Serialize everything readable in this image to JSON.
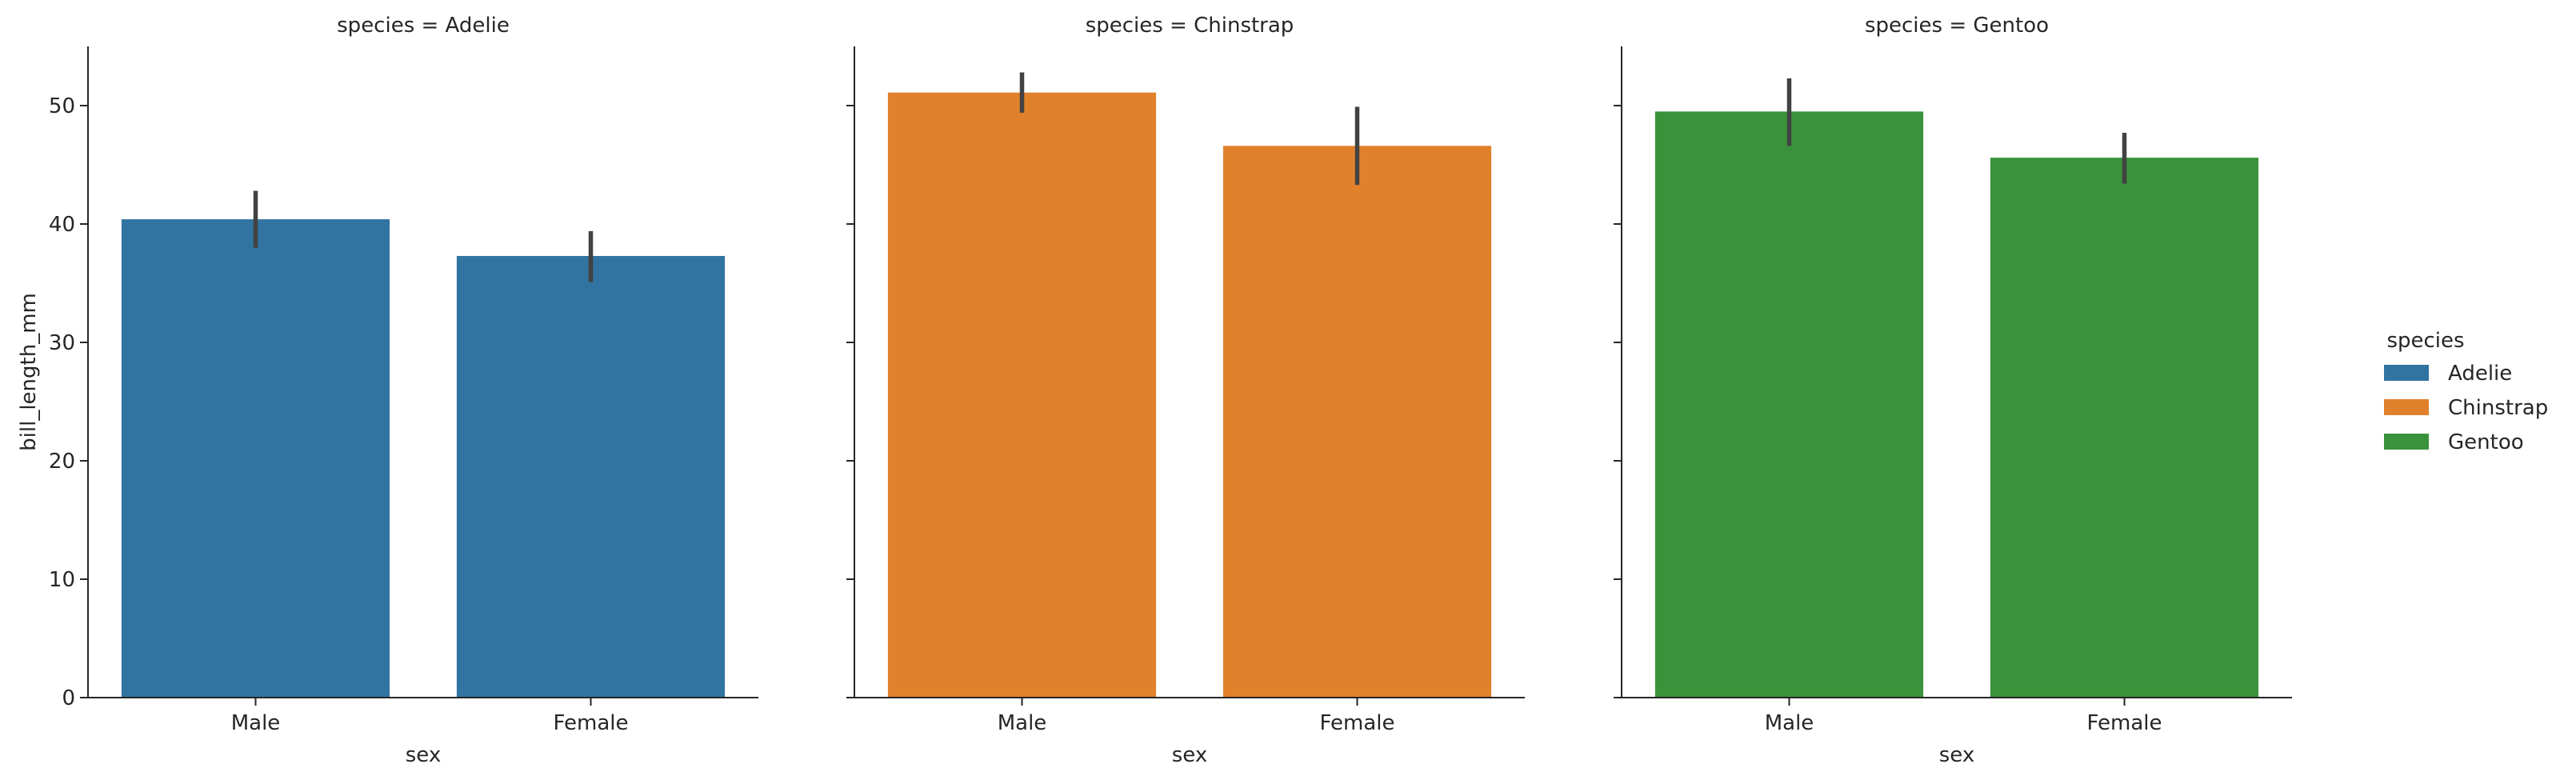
{
  "chart_data": {
    "type": "bar",
    "xlabel": "sex",
    "ylabel": "bill_length_mm",
    "ylim": [
      0,
      55
    ],
    "yticks": [
      0,
      10,
      20,
      30,
      40,
      50
    ],
    "categories": [
      "Male",
      "Female"
    ],
    "legend": {
      "title": "species",
      "placement": "right",
      "entries": [
        {
          "label": "Adelie",
          "color": "#3274a1"
        },
        {
          "label": "Chinstrap",
          "color": "#e1812c"
        },
        {
          "label": "Gentoo",
          "color": "#3a923a"
        }
      ]
    },
    "panels": [
      {
        "title": "species = Adelie",
        "color": "#3274a1",
        "values": [
          40.4,
          37.3
        ],
        "ci": [
          [
            38.0,
            42.8
          ],
          [
            35.1,
            39.4
          ]
        ]
      },
      {
        "title": "species = Chinstrap",
        "color": "#e1812c",
        "values": [
          51.1,
          46.6
        ],
        "ci": [
          [
            49.4,
            52.8
          ],
          [
            43.3,
            49.9
          ]
        ]
      },
      {
        "title": "species = Gentoo",
        "color": "#3a923a",
        "values": [
          49.5,
          45.6
        ],
        "ci": [
          [
            46.6,
            52.3
          ],
          [
            43.4,
            47.7
          ]
        ]
      }
    ],
    "errorbar_color": "#424242",
    "grid": false
  }
}
